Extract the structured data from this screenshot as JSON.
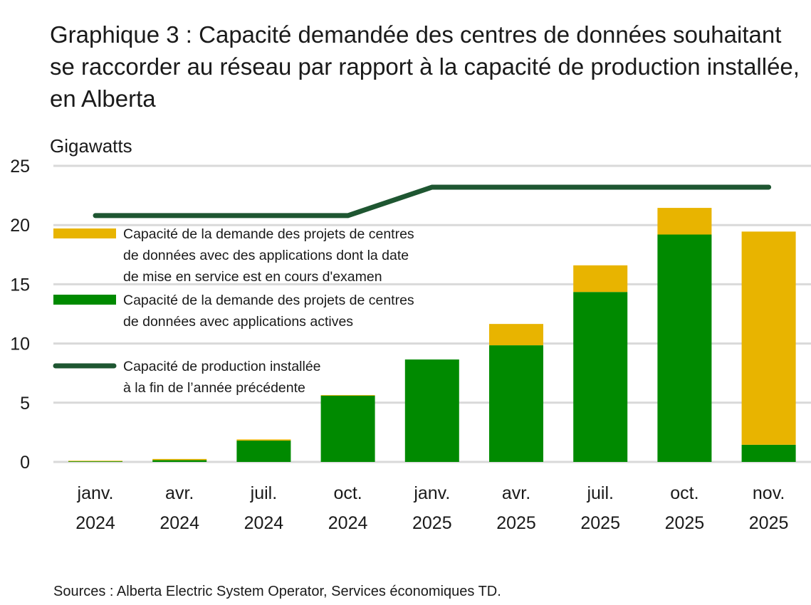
{
  "chart_data": {
    "type": "bar",
    "title": "Graphique 3 : Capacité demandée des centres de données souhaitant se raccorder au réseau par rapport à la capacité de production installée, en Alberta",
    "ylabel": "Gigawatts",
    "ylim": [
      0,
      25
    ],
    "yticks": [
      "0",
      "5",
      "10",
      "15",
      "20",
      "25"
    ],
    "grid": true,
    "legend_placement": "top-left",
    "categories": [
      [
        "janv.",
        "2024"
      ],
      [
        "avr.",
        "2024"
      ],
      [
        "juil.",
        "2024"
      ],
      [
        "oct.",
        "2024"
      ],
      [
        "janv.",
        "2025"
      ],
      [
        "avr.",
        "2025"
      ],
      [
        "juil.",
        "2025"
      ],
      [
        "oct.",
        "2025"
      ],
      [
        "nov.",
        "2025"
      ]
    ],
    "series": [
      {
        "name": "Capacité de la demande des projets de centres de données avec applications actives",
        "type": "stacked-bar",
        "color": "#008A00",
        "values": [
          0.05,
          0.15,
          1.8,
          5.6,
          8.65,
          9.85,
          14.35,
          19.2,
          1.45
        ]
      },
      {
        "name": "Capacité de la demande des projets de centres de données avec des applications dont la date de mise en service est en cours d'examen",
        "type": "stacked-bar",
        "color": "#E8B400",
        "values": [
          0.05,
          0.1,
          0.1,
          0.05,
          0,
          1.8,
          2.25,
          2.25,
          18.0
        ]
      },
      {
        "name": "Capacité de production installée à la fin de l’année précédente",
        "type": "line",
        "color": "#1E5631",
        "values": [
          20.8,
          20.8,
          20.8,
          20.8,
          23.2,
          23.2,
          23.2,
          23.2,
          23.2
        ]
      }
    ],
    "legend_lines": [
      [
        "Capacité de la demande des projets de centres",
        "de données avec des applications dont la date",
        "de mise en service est en cours d'examen"
      ],
      [
        "Capacité de la demande des projets de centres",
        "de données avec applications actives"
      ],
      [
        "Capacité de production installée",
        "à la fin de l’année précédente"
      ]
    ]
  },
  "source": "Sources : Alberta Electric System Operator, Services économiques TD."
}
